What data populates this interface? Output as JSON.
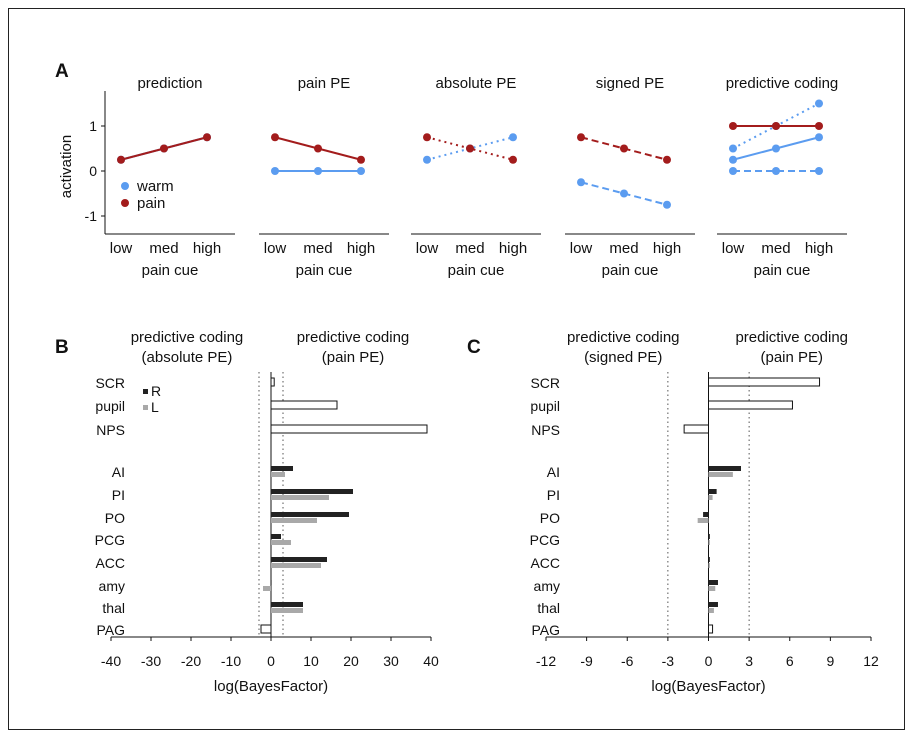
{
  "colors": {
    "warm": "#5b9cf0",
    "pain": "#a31c1c",
    "right": "#222222",
    "left": "#a9a9a9",
    "outline": "#111111"
  },
  "chart_data": [
    {
      "panel": "A",
      "type": "line",
      "ylabel": "activation",
      "xlabel": "pain cue",
      "categories": [
        "low",
        "med",
        "high"
      ],
      "yticks": [
        -1,
        0,
        1
      ],
      "ylim": [
        -1.4,
        1.6
      ],
      "legend": [
        "warm",
        "pain"
      ],
      "subplots": [
        {
          "title": "prediction",
          "series": [
            {
              "name": "warm",
              "style": "solid",
              "values": [
                0.25,
                0.5,
                0.75
              ]
            },
            {
              "name": "pain",
              "style": "solid",
              "values": [
                0.25,
                0.5,
                0.75
              ]
            }
          ]
        },
        {
          "title": "pain PE",
          "series": [
            {
              "name": "warm",
              "style": "solid",
              "values": [
                0,
                0,
                0
              ]
            },
            {
              "name": "pain",
              "style": "solid",
              "values": [
                0.75,
                0.5,
                0.25
              ]
            }
          ]
        },
        {
          "title": "absolute PE",
          "series": [
            {
              "name": "warm",
              "style": "dotted",
              "values": [
                0.25,
                0.5,
                0.75
              ]
            },
            {
              "name": "pain",
              "style": "dotted",
              "values": [
                0.75,
                0.5,
                0.25
              ]
            }
          ]
        },
        {
          "title": "signed PE",
          "series": [
            {
              "name": "warm",
              "style": "dashed",
              "values": [
                -0.25,
                -0.5,
                -0.75
              ]
            },
            {
              "name": "pain",
              "style": "dashed",
              "values": [
                0.75,
                0.5,
                0.25
              ]
            }
          ]
        },
        {
          "title": "predictive coding",
          "series": [
            {
              "name": "warm",
              "style": "solid",
              "values": [
                0.25,
                0.5,
                0.75
              ]
            },
            {
              "name": "warm",
              "style": "dotted",
              "values": [
                0.5,
                1.0,
                1.5
              ]
            },
            {
              "name": "warm",
              "style": "dashed",
              "values": [
                0,
                0,
                0
              ]
            },
            {
              "name": "pain",
              "style": "solid",
              "values": [
                1,
                1,
                1
              ]
            }
          ]
        }
      ]
    },
    {
      "panel": "B",
      "type": "bar",
      "orientation": "horizontal",
      "left_title": [
        "predictive coding",
        "(absolute PE)"
      ],
      "right_title": [
        "predictive coding",
        "(pain PE)"
      ],
      "xlabel": "log(BayesFactor)",
      "xlim": [
        -40,
        40
      ],
      "xticks": [
        -40,
        -30,
        -20,
        -10,
        0,
        10,
        20,
        30,
        40
      ],
      "reference_lines": [
        -3,
        3
      ],
      "legend": [
        "R",
        "L"
      ],
      "single": [
        {
          "label": "SCR",
          "value": 0.8
        },
        {
          "label": "pupil",
          "value": 16.5
        },
        {
          "label": "NPS",
          "value": 39
        }
      ],
      "regions": [
        {
          "label": "AI",
          "R": 5.5,
          "L": 3.5
        },
        {
          "label": "PI",
          "R": 20.5,
          "L": 14.5
        },
        {
          "label": "PO",
          "R": 19.5,
          "L": 11.5
        },
        {
          "label": "PCG",
          "R": 2.5,
          "L": 5
        },
        {
          "label": "ACC",
          "R": 14,
          "L": 12.5
        },
        {
          "label": "amy",
          "R": 0,
          "L": -2
        },
        {
          "label": "thal",
          "R": 8,
          "L": 8
        },
        {
          "label": "PAG",
          "single": -2.5
        }
      ]
    },
    {
      "panel": "C",
      "type": "bar",
      "orientation": "horizontal",
      "left_title": [
        "predictive coding",
        "(signed PE)"
      ],
      "right_title": [
        "predictive coding",
        "(pain PE)"
      ],
      "xlabel": "log(BayesFactor)",
      "xlim": [
        -12,
        12
      ],
      "xticks": [
        -12,
        -9,
        -6,
        -3,
        0,
        3,
        6,
        9,
        12
      ],
      "reference_lines": [
        -3,
        3
      ],
      "single": [
        {
          "label": "SCR",
          "value": 8.2
        },
        {
          "label": "pupil",
          "value": 6.2
        },
        {
          "label": "NPS",
          "value": -1.8
        }
      ],
      "regions": [
        {
          "label": "AI",
          "R": 2.4,
          "L": 1.8
        },
        {
          "label": "PI",
          "R": 0.6,
          "L": 0.3
        },
        {
          "label": "PO",
          "R": -0.4,
          "L": -0.8
        },
        {
          "label": "PCG",
          "R": 0.1,
          "L": 0.1
        },
        {
          "label": "ACC",
          "R": 0.1,
          "L": 0.1
        },
        {
          "label": "amy",
          "R": 0.7,
          "L": 0.5
        },
        {
          "label": "thal",
          "R": 0.7,
          "L": 0.4
        },
        {
          "label": "PAG",
          "single": 0.3
        }
      ]
    }
  ],
  "panel_letters": {
    "a": "A",
    "b": "B",
    "c": "C"
  }
}
